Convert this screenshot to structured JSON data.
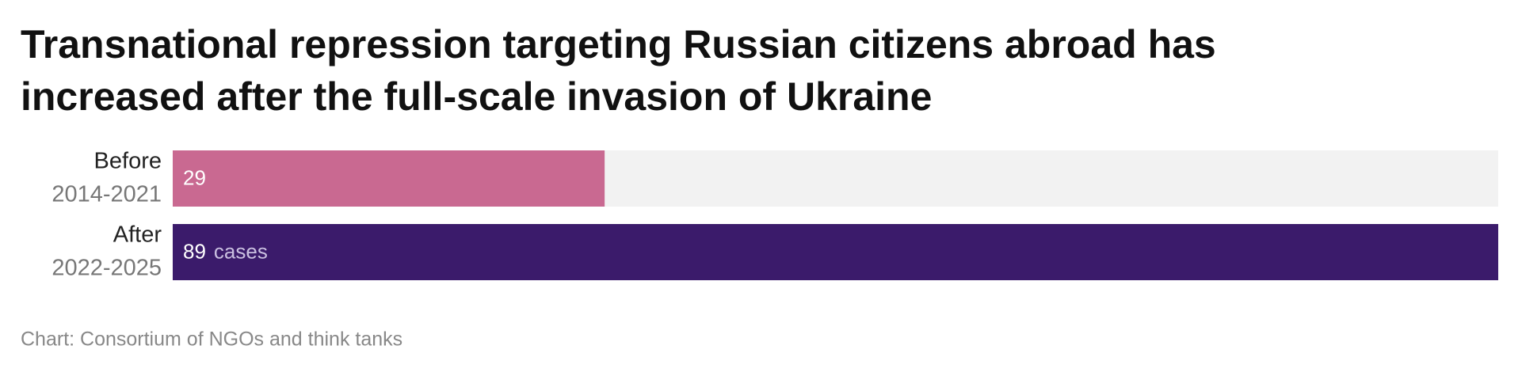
{
  "chart_data": {
    "type": "bar",
    "orientation": "horizontal",
    "title": "Transnational repression targeting Russian citizens abroad has",
    "title_line2": "increased after the full-scale invasion of Ukraine",
    "categories": [
      "Before",
      "After"
    ],
    "periods": [
      "2014-2021",
      "2022-2025"
    ],
    "values": [
      29,
      89
    ],
    "value_labels": [
      "29",
      "89"
    ],
    "unit_label": "cases",
    "colors": [
      "#c96991",
      "#3b1b6b"
    ],
    "track_color": "#f2f2f2",
    "source": "Chart: Consortium of NGOs and think tanks"
  }
}
